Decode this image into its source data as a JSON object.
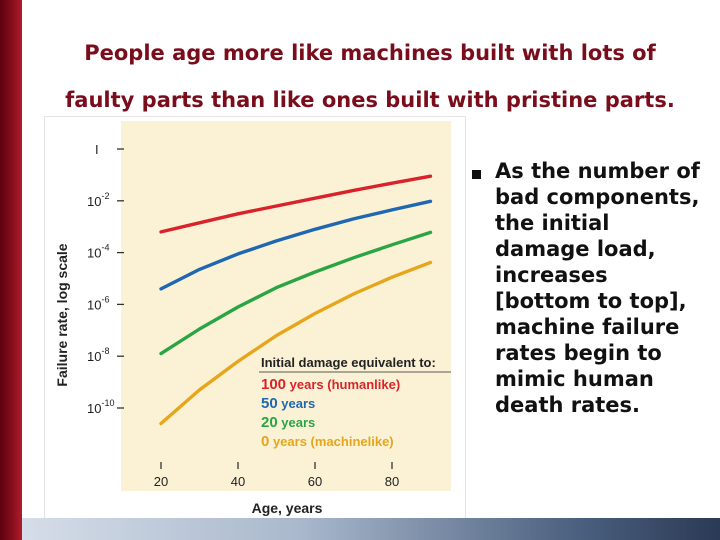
{
  "slide": {
    "title_line1": "People age more like machines built with lots of",
    "title_line2": "faulty parts than like ones built with pristine parts.",
    "bullet": "As the number of bad components, the initial damage load, increases [bottom to top], machine failure rates begin to mimic human death rates.",
    "colors": {
      "accent": "#7a0d1c"
    }
  },
  "chart_data": {
    "type": "line",
    "xlabel": "Age, years",
    "ylabel": "Failure rate, log scale",
    "x_ticks": [
      "20",
      "40",
      "60",
      "80"
    ],
    "y_ticks": [
      "I",
      "10-2",
      "10-4",
      "10-6",
      "10-8",
      "10-10"
    ],
    "xlim": [
      20,
      90
    ],
    "ylim": [
      -11,
      0
    ],
    "y_scale": "log10",
    "background": "#fbf2d6",
    "legend": {
      "title": "Initial damage equivalent to:",
      "placement": "bottom-right",
      "entries": [
        {
          "number": "100",
          "text": " years (humanlike)",
          "color": "#d9232b"
        },
        {
          "number": "50",
          "text": " years",
          "color": "#1f67b1"
        },
        {
          "number": "20",
          "text": " years",
          "color": "#2aa544"
        },
        {
          "number": "0",
          "text": " years (machinelike)",
          "color": "#e6a51a"
        }
      ]
    },
    "series": [
      {
        "name": "100 years (humanlike)",
        "color": "#d9232b",
        "x": [
          20,
          30,
          40,
          50,
          60,
          70,
          80,
          90
        ],
        "y": [
          -3.2,
          -2.85,
          -2.5,
          -2.2,
          -1.9,
          -1.6,
          -1.32,
          -1.05
        ]
      },
      {
        "name": "50 years",
        "color": "#1f67b1",
        "x": [
          20,
          30,
          40,
          50,
          60,
          70,
          80,
          90
        ],
        "y": [
          -5.4,
          -4.65,
          -4.05,
          -3.55,
          -3.1,
          -2.7,
          -2.35,
          -2.02
        ]
      },
      {
        "name": "20 years",
        "color": "#2aa544",
        "x": [
          20,
          30,
          40,
          50,
          60,
          70,
          80,
          90
        ],
        "y": [
          -7.9,
          -6.95,
          -6.1,
          -5.35,
          -4.75,
          -4.2,
          -3.7,
          -3.22
        ]
      },
      {
        "name": "0 years (machinelike)",
        "color": "#e6a51a",
        "x": [
          20,
          30,
          40,
          50,
          60,
          70,
          80,
          90
        ],
        "y": [
          -10.6,
          -9.3,
          -8.2,
          -7.2,
          -6.35,
          -5.6,
          -4.95,
          -4.38
        ]
      }
    ]
  }
}
